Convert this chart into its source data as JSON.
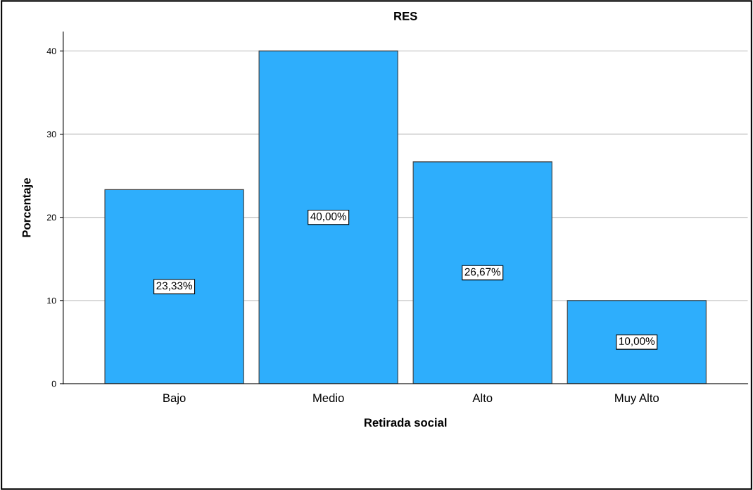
{
  "chart_data": {
    "type": "bar",
    "title": "RES",
    "xlabel": "Retirada social",
    "ylabel": "Porcentaje",
    "categories": [
      "Bajo",
      "Medio",
      "Alto",
      "Muy Alto"
    ],
    "values": [
      23.33,
      40,
      26.67,
      10
    ],
    "value_labels": [
      "23,33%",
      "40,00%",
      "26,67%",
      "10,00%"
    ],
    "color": "#2eaefc",
    "ylim": [
      0,
      42.3
    ],
    "yticks": [
      0,
      10,
      20,
      30,
      40
    ],
    "grid": "y",
    "legend": false
  }
}
